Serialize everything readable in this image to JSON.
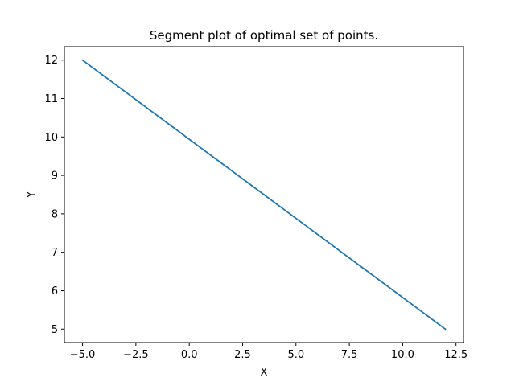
{
  "chart_data": {
    "type": "line",
    "title": "Segment plot of optimal set of points.",
    "xlabel": "X",
    "ylabel": "Y",
    "xlim": [
      -5.85,
      12.85
    ],
    "ylim": [
      4.65,
      12.35
    ],
    "xticks": [
      -5.0,
      -2.5,
      0.0,
      2.5,
      5.0,
      7.5,
      10.0,
      12.5
    ],
    "xtick_labels": [
      "−5.0",
      "−2.5",
      "0.0",
      "2.5",
      "5.0",
      "7.5",
      "10.0",
      "12.5"
    ],
    "yticks": [
      5,
      6,
      7,
      8,
      9,
      10,
      11,
      12
    ],
    "ytick_labels": [
      "5",
      "6",
      "7",
      "8",
      "9",
      "10",
      "11",
      "12"
    ],
    "grid": false,
    "legend": null,
    "series": [
      {
        "color": "#1f77b4",
        "x": [
          -5,
          12
        ],
        "y": [
          12,
          5
        ]
      }
    ]
  }
}
